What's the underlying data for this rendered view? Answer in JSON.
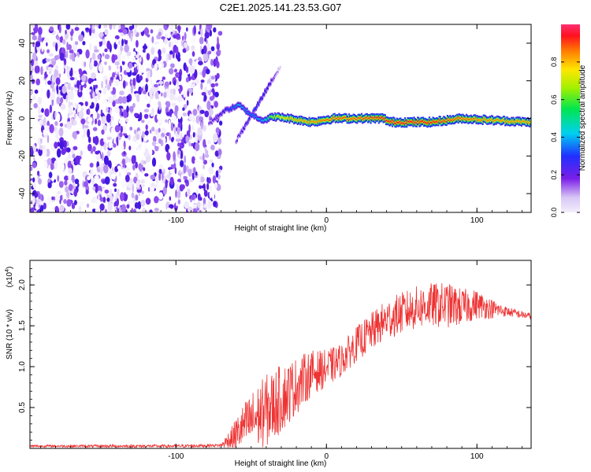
{
  "chart_data": [
    {
      "type": "heatmap",
      "title": "C2E1.2025.141.23.53.G07",
      "xlabel": "Height of straight line (km)",
      "ylabel": "Frequency (Hz)",
      "xlim": [
        -197,
        136
      ],
      "ylim": [
        -50,
        50
      ],
      "xticks": [
        -100,
        0,
        100
      ],
      "yticks": [
        -40,
        -20,
        0,
        20,
        40
      ],
      "colorbar": {
        "label": "Normalized spectral amplitude",
        "range": [
          0.0,
          1.0
        ],
        "ticks": [
          "0.0",
          "0.2",
          "0.4",
          "0.6",
          "0.8"
        ],
        "colormap": "rainbow (white-violet-blue-cyan-green-yellow-red)"
      },
      "noise_region_x": [
        -197,
        -70
      ],
      "carrier_track": [
        {
          "x": -78,
          "freq": -3,
          "amp": 0.2
        },
        {
          "x": -68,
          "freq": 4,
          "amp": 0.3
        },
        {
          "x": -58,
          "freq": 7,
          "amp": 0.45
        },
        {
          "x": -50,
          "freq": 2,
          "amp": 0.4
        },
        {
          "x": -42,
          "freq": -1,
          "amp": 0.45
        },
        {
          "x": -35,
          "freq": 1,
          "amp": 0.7
        },
        {
          "x": -25,
          "freq": 0,
          "amp": 0.8
        },
        {
          "x": -10,
          "freq": -2,
          "amp": 0.85
        },
        {
          "x": 5,
          "freq": 0,
          "amp": 0.9
        },
        {
          "x": 20,
          "freq": 0,
          "amp": 0.9
        },
        {
          "x": 38,
          "freq": 0,
          "amp": 0.95
        },
        {
          "x": 42,
          "freq": -2,
          "amp": 0.95
        },
        {
          "x": 70,
          "freq": -2,
          "amp": 0.95
        },
        {
          "x": 90,
          "freq": 0,
          "amp": 0.9
        },
        {
          "x": 110,
          "freq": -1,
          "amp": 0.85
        },
        {
          "x": 136,
          "freq": -2,
          "amp": 0.85
        }
      ],
      "secondary_track": [
        {
          "x": -60,
          "freq": -12,
          "amp": 0.2
        },
        {
          "x": -48,
          "freq": 4,
          "amp": 0.35
        },
        {
          "x": -38,
          "freq": 18,
          "amp": 0.3
        },
        {
          "x": -30,
          "freq": 28,
          "amp": 0.05
        }
      ]
    },
    {
      "type": "line",
      "xlabel": "Height of straight line (km)",
      "ylabel": "SNR (10 * v/v)",
      "y_scale_label": "(x10",
      "y_scale_exp": "4",
      "xlim": [
        -197,
        136
      ],
      "ylim": [
        0.0,
        2.3
      ],
      "xticks": [
        -100,
        0,
        100
      ],
      "yticks": [
        0.5,
        1.0,
        1.5,
        2.0
      ],
      "color": "#ee3333",
      "envelope_x": [
        -197,
        -100,
        -70,
        -62,
        -55,
        -48,
        -40,
        -30,
        -20,
        -10,
        0,
        10,
        20,
        30,
        40,
        50,
        60,
        70,
        80,
        90,
        100,
        110,
        120,
        130,
        136
      ],
      "envelope_y": [
        0.03,
        0.03,
        0.04,
        0.15,
        0.3,
        0.4,
        0.5,
        0.65,
        0.8,
        0.95,
        1.0,
        1.1,
        1.3,
        1.45,
        1.6,
        1.68,
        1.75,
        1.78,
        1.78,
        1.75,
        1.78,
        1.72,
        1.68,
        1.64,
        1.62
      ],
      "noise_amp_x": [
        -197,
        -70,
        -62,
        -50,
        -40,
        -30,
        -20,
        -5,
        10,
        40,
        80,
        100,
        120,
        136
      ],
      "noise_amp_y": [
        0.015,
        0.02,
        0.18,
        0.35,
        0.45,
        0.42,
        0.35,
        0.25,
        0.2,
        0.25,
        0.28,
        0.18,
        0.06,
        0.04
      ]
    }
  ]
}
